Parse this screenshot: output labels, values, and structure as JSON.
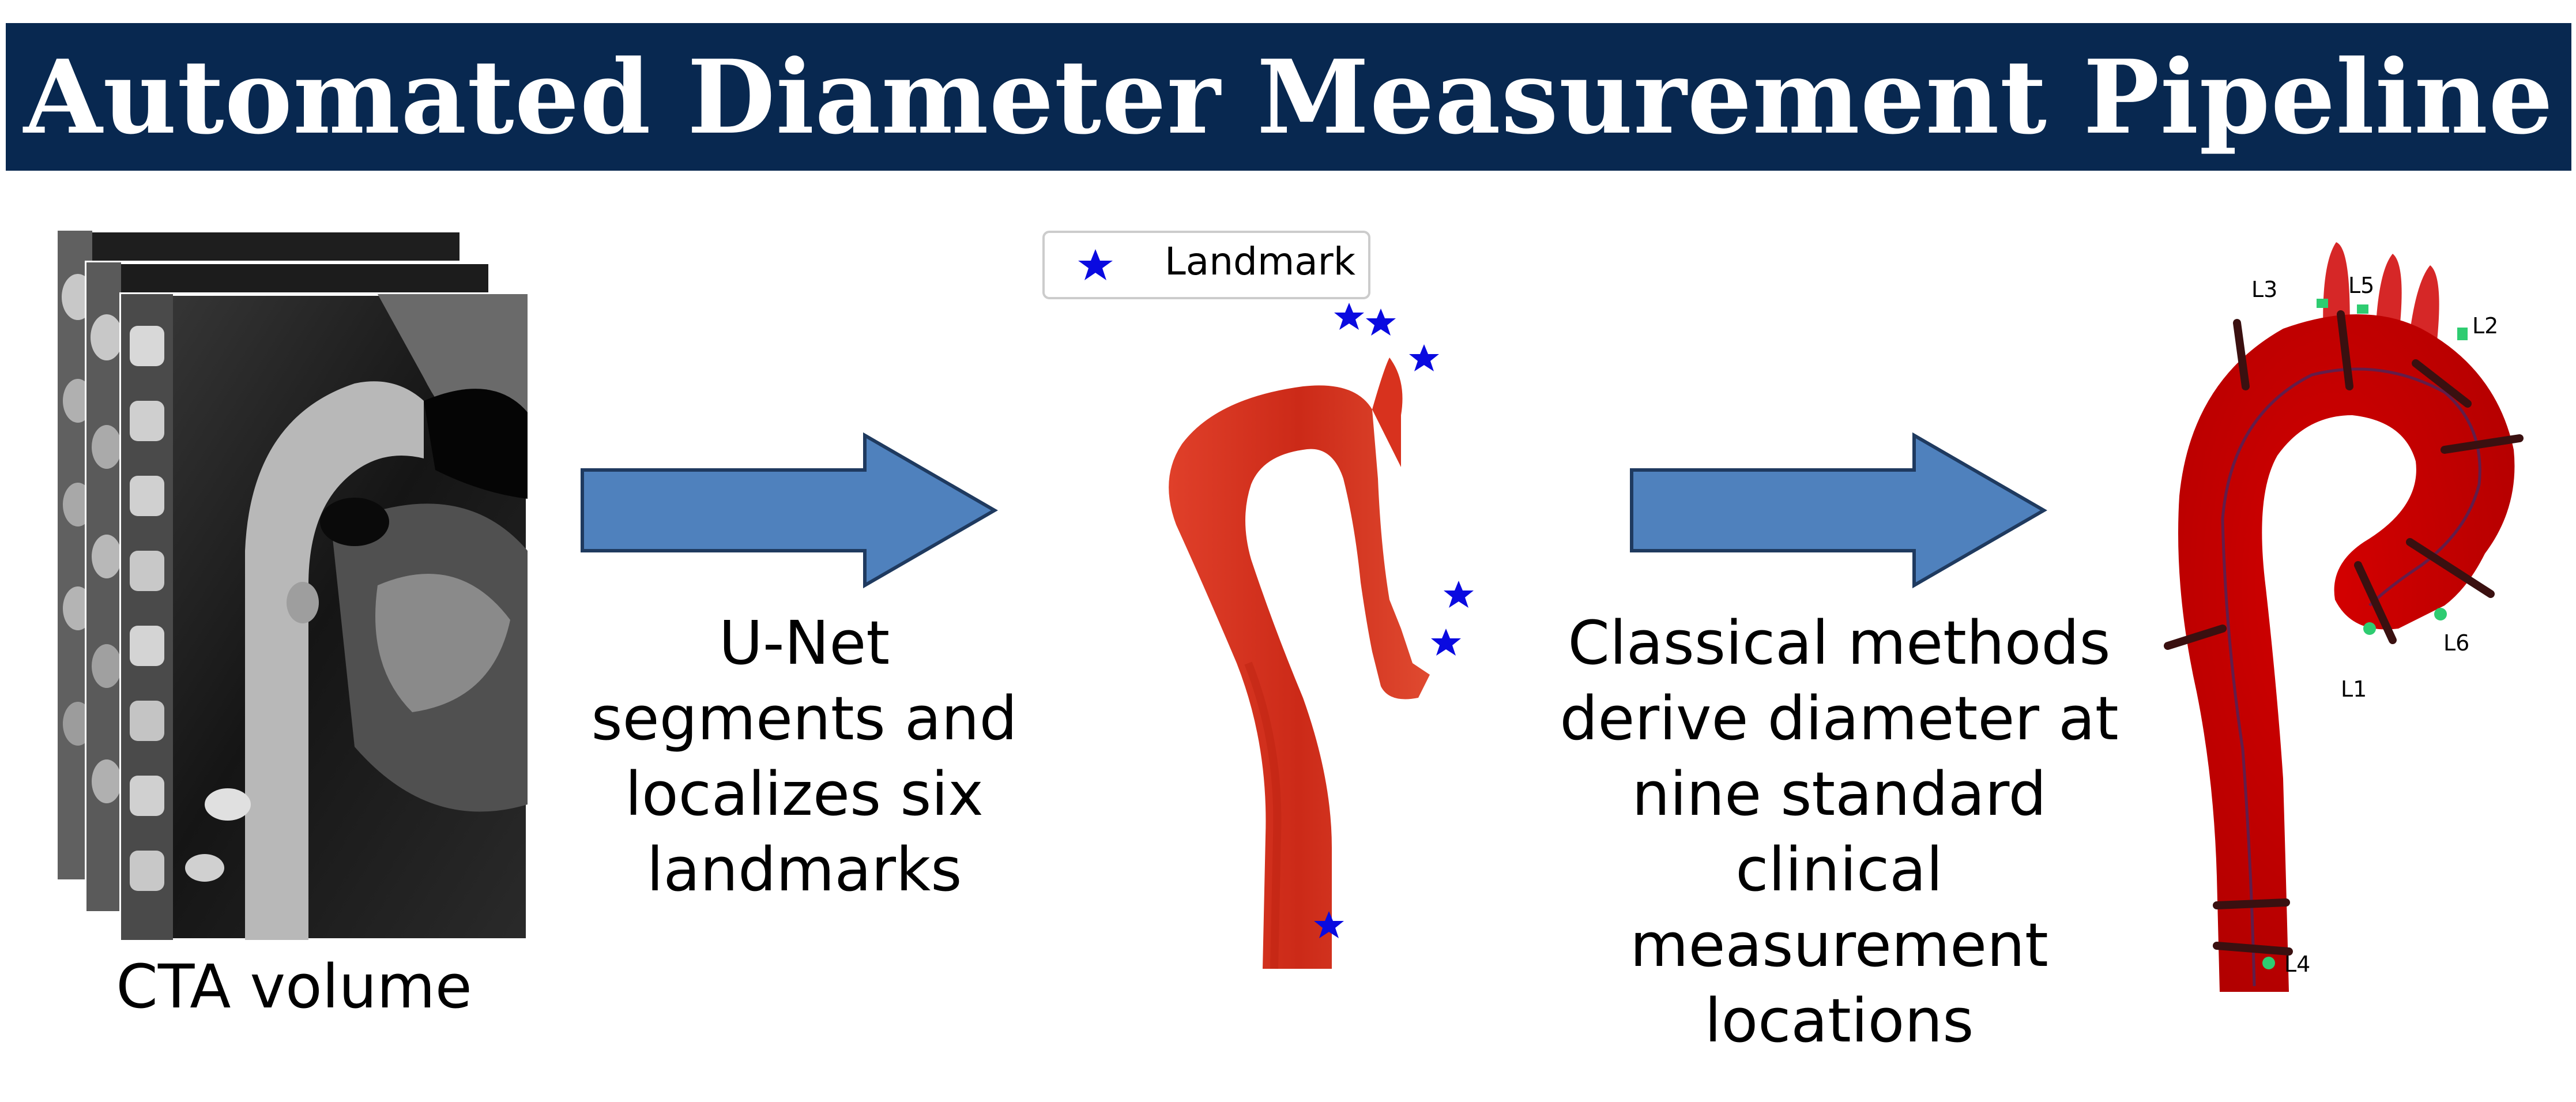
{
  "title": "Automated Diameter Measurement Pipeline",
  "captions": {
    "cta": "CTA volume",
    "unet": [
      "U-Net",
      "segments and",
      "localizes six",
      "landmarks"
    ],
    "classical": [
      "Classical methods",
      "derive diameter at",
      "nine standard",
      "clinical",
      "measurement",
      "locations"
    ]
  },
  "legend": {
    "label": "Landmark",
    "marker": "star-icon",
    "marker_color": "#0a0ae0"
  },
  "measurement_labels": [
    "L1",
    "L2",
    "L3",
    "L4",
    "L5",
    "L6"
  ],
  "colors": {
    "title_bar": "#082850",
    "title_text": "#ffffff",
    "arrow_fill": "#4f81bd",
    "arrow_stroke": "#1f3a5f",
    "segmentation": "#d8321e",
    "aorta_model": "#c40000",
    "landmark_star": "#0a0ae0",
    "landmark_point": "#2ecc71"
  }
}
